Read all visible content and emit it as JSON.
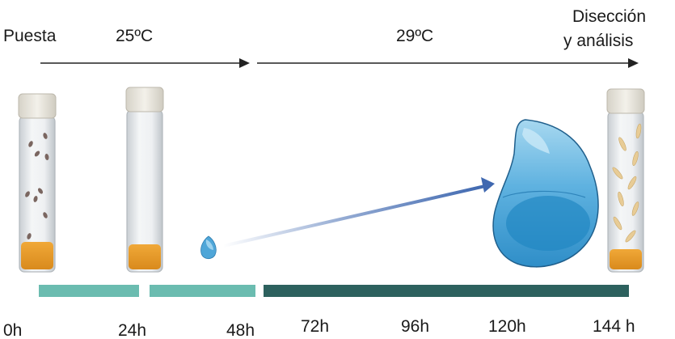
{
  "labels": {
    "laying": "Puesta",
    "temp_low": "25ºC",
    "temp_high": "29ºC",
    "dissection_line1": "Disección",
    "dissection_line2": "y análisis"
  },
  "timeline": {
    "ticks": [
      "0h",
      "24h",
      "48h",
      "72h",
      "96h",
      "120h",
      "144 h"
    ]
  },
  "colors": {
    "bar_light": "#6bbcb0",
    "bar_dark": "#2d615e",
    "food": "#e89a2c",
    "larva": "#e8cc96",
    "disc_fill": "#4fa6d8",
    "disc_light": "#8fcaea",
    "arrow_blue": "#3f68b0",
    "egg": "#7a6660"
  },
  "icons": {
    "vial": "vial-icon",
    "egg": "egg-icon",
    "larva": "larva-icon",
    "disc": "imaginal-disc-icon"
  }
}
